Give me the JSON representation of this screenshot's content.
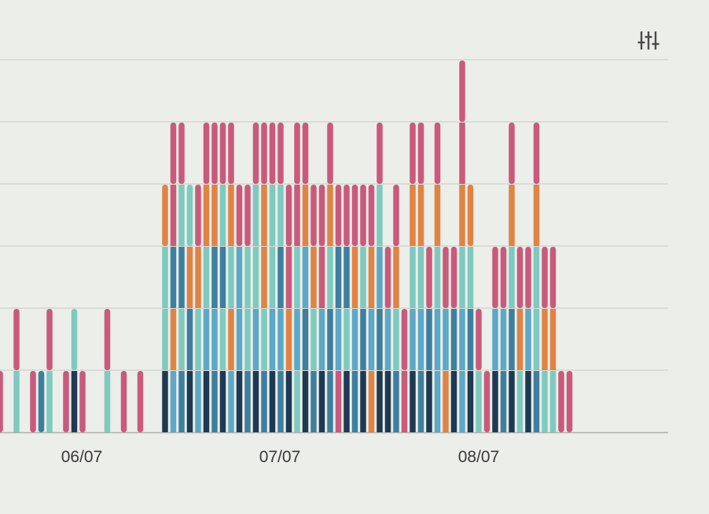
{
  "controls": {
    "filter_icon": "sliders-icon"
  },
  "colors": {
    "background": "#ECEEE9",
    "grid": "#CFD1CC",
    "axis": "#AEB0AB",
    "icon": "#4A4A4A"
  },
  "chart_data": {
    "type": "bar",
    "stacked": true,
    "title": "",
    "xlabel": "",
    "ylabel": "",
    "x_tick_labels": [
      "06/07",
      "07/07",
      "08/07"
    ],
    "ylim": [
      0,
      6
    ],
    "grid": true,
    "legend": "none",
    "palette": {
      "navy": "#1E3A52",
      "steel": "#3E7FA0",
      "sky": "#5DA8C6",
      "mint": "#7FCABF",
      "orange": "#E08344",
      "pink": "#C95A7C"
    },
    "bars": [
      [
        "pink"
      ],
      [],
      [
        "mint",
        "pink"
      ],
      [],
      [
        "pink"
      ],
      [
        "steel"
      ],
      [
        "mint",
        "pink"
      ],
      [],
      [
        "pink"
      ],
      [
        "navy",
        "mint"
      ],
      [
        "pink"
      ],
      [],
      [],
      [
        "mint",
        "pink"
      ],
      [],
      [
        "pink"
      ],
      [],
      [
        "pink"
      ],
      [],
      [],
      [
        "navy",
        "mint",
        "mint",
        "orange"
      ],
      [
        "sky",
        "orange",
        "steel",
        "pink",
        "pink"
      ],
      [
        "steel",
        "mint",
        "steel",
        "mint",
        "pink"
      ],
      [
        "navy",
        "steel",
        "orange",
        "mint"
      ],
      [
        "sky",
        "mint",
        "orange",
        "pink"
      ],
      [
        "navy",
        "sky",
        "mint",
        "orange",
        "pink"
      ],
      [
        "steel",
        "sky",
        "steel",
        "orange",
        "pink"
      ],
      [
        "navy",
        "mint",
        "steel",
        "mint",
        "pink"
      ],
      [
        "sky",
        "orange",
        "mint",
        "orange",
        "pink"
      ],
      [
        "navy",
        "sky",
        "sky",
        "pink"
      ],
      [
        "steel",
        "mint",
        "mint",
        "pink"
      ],
      [
        "navy",
        "sky",
        "mint",
        "mint",
        "pink"
      ],
      [
        "steel",
        "mint",
        "orange",
        "orange",
        "pink"
      ],
      [
        "navy",
        "sky",
        "mint",
        "mint",
        "pink"
      ],
      [
        "steel",
        "sky",
        "steel",
        "mint",
        "pink"
      ],
      [
        "navy",
        "orange",
        "pink",
        "pink"
      ],
      [
        "mint",
        "sky",
        "mint",
        "pink",
        "pink"
      ],
      [
        "navy",
        "steel",
        "sky",
        "orange",
        "pink"
      ],
      [
        "steel",
        "mint",
        "orange",
        "pink"
      ],
      [
        "navy",
        "sky",
        "pink",
        "pink"
      ],
      [
        "steel",
        "steel",
        "mint",
        "orange",
        "pink"
      ],
      [
        "pink",
        "sky",
        "steel",
        "pink"
      ],
      [
        "navy",
        "mint",
        "steel",
        "pink"
      ],
      [
        "steel",
        "sky",
        "orange",
        "pink"
      ],
      [
        "navy",
        "steel",
        "mint",
        "pink"
      ],
      [
        "orange",
        "sky",
        "orange",
        "pink"
      ],
      [
        "navy",
        "steel",
        "sky",
        "mint",
        "pink"
      ],
      [
        "navy",
        "sky",
        "pink"
      ],
      [
        "steel",
        "mint",
        "orange",
        "pink"
      ],
      [
        "pink",
        "pink"
      ],
      [
        "navy",
        "sky",
        "mint",
        "orange",
        "pink"
      ],
      [
        "steel",
        "sky",
        "mint",
        "orange",
        "pink"
      ],
      [
        "navy",
        "steel",
        "pink"
      ],
      [
        "sky",
        "sky",
        "mint",
        "orange",
        "pink"
      ],
      [
        "orange",
        "sky",
        "pink"
      ],
      [
        "navy",
        "steel",
        "pink"
      ],
      [
        "sky",
        "sky",
        "mint",
        "orange",
        "pink",
        "pink"
      ],
      [
        "navy",
        "steel",
        "mint",
        "orange"
      ],
      [
        "mint",
        "pink"
      ],
      [
        "pink"
      ],
      [
        "navy",
        "sky",
        "pink"
      ],
      [
        "steel",
        "sky",
        "pink"
      ],
      [
        "navy",
        "steel",
        "mint",
        "orange",
        "pink"
      ],
      [
        "mint",
        "orange",
        "pink"
      ],
      [
        "navy",
        "sky",
        "pink"
      ],
      [
        "steel",
        "mint",
        "mint",
        "orange",
        "pink"
      ],
      [
        "mint",
        "orange",
        "pink"
      ],
      [
        "mint",
        "orange",
        "pink"
      ],
      [
        "pink"
      ],
      [
        "pink"
      ]
    ]
  }
}
